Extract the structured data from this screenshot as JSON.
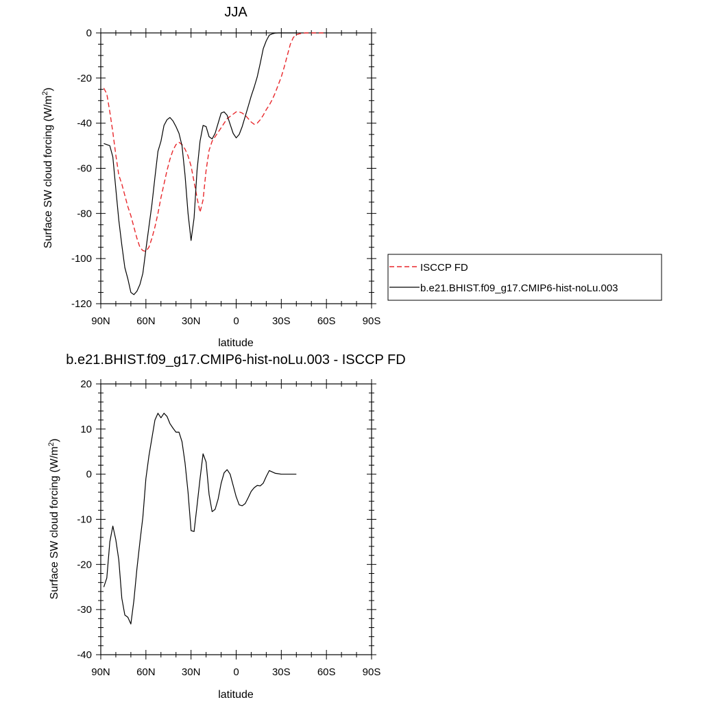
{
  "chart_data": [
    {
      "type": "line",
      "title": "JJA",
      "xlabel": "latitude",
      "ylabel_main": "Surface SW cloud forcing (W/m",
      "ylabel_sup": "2",
      "ylabel_close": ")",
      "xlim": [
        -90,
        90
      ],
      "ylim": [
        -120,
        0
      ],
      "xticks": [
        {
          "v": -90,
          "label": "90N"
        },
        {
          "v": -60,
          "label": "60N"
        },
        {
          "v": -30,
          "label": "30N"
        },
        {
          "v": 0,
          "label": "0"
        },
        {
          "v": 30,
          "label": "30S"
        },
        {
          "v": 60,
          "label": "60S"
        },
        {
          "v": 90,
          "label": "90S"
        }
      ],
      "yticks": [
        {
          "v": 0,
          "label": "0"
        },
        {
          "v": -20,
          "label": "-20"
        },
        {
          "v": -40,
          "label": "-40"
        },
        {
          "v": -60,
          "label": "-60"
        },
        {
          "v": -80,
          "label": "-80"
        },
        {
          "v": -100,
          "label": "-100"
        },
        {
          "v": -120,
          "label": "-120"
        }
      ],
      "legend_position": "right",
      "series": [
        {
          "name": "ISCCP FD",
          "color": "#e8262a",
          "style": "dashed",
          "points": [
            [
              -88,
              -24.5
            ],
            [
              -86,
              -27
            ],
            [
              -84,
              -35
            ],
            [
              -82,
              -44
            ],
            [
              -80,
              -54
            ],
            [
              -78,
              -63
            ],
            [
              -76,
              -67
            ],
            [
              -74,
              -72
            ],
            [
              -72,
              -77
            ],
            [
              -70,
              -81
            ],
            [
              -68,
              -86
            ],
            [
              -66,
              -91
            ],
            [
              -64,
              -95
            ],
            [
              -62,
              -96.5
            ],
            [
              -60,
              -96.8
            ],
            [
              -58,
              -95
            ],
            [
              -56,
              -91
            ],
            [
              -54,
              -86
            ],
            [
              -52,
              -80
            ],
            [
              -50,
              -73
            ],
            [
              -48,
              -67
            ],
            [
              -46,
              -61
            ],
            [
              -44,
              -56
            ],
            [
              -42,
              -52
            ],
            [
              -40,
              -49.5
            ],
            [
              -38,
              -48.5
            ],
            [
              -36,
              -49.5
            ],
            [
              -34,
              -51.5
            ],
            [
              -32,
              -54.5
            ],
            [
              -30,
              -59
            ],
            [
              -28,
              -66
            ],
            [
              -26,
              -73
            ],
            [
              -24,
              -79.5
            ],
            [
              -22,
              -74
            ],
            [
              -20,
              -61
            ],
            [
              -18,
              -52
            ],
            [
              -16,
              -48
            ],
            [
              -14,
              -46
            ],
            [
              -12,
              -44
            ],
            [
              -10,
              -42
            ],
            [
              -8,
              -40
            ],
            [
              -6,
              -38
            ],
            [
              -4,
              -37
            ],
            [
              -2,
              -36
            ],
            [
              0,
              -35
            ],
            [
              2,
              -35
            ],
            [
              4,
              -35.5
            ],
            [
              6,
              -36.5
            ],
            [
              8,
              -38
            ],
            [
              10,
              -39.5
            ],
            [
              12,
              -40.5
            ],
            [
              14,
              -40
            ],
            [
              16,
              -38.5
            ],
            [
              18,
              -36.5
            ],
            [
              20,
              -34
            ],
            [
              22,
              -32
            ],
            [
              24,
              -29.5
            ],
            [
              26,
              -26.5
            ],
            [
              28,
              -23
            ],
            [
              30,
              -19.5
            ],
            [
              32,
              -15
            ],
            [
              34,
              -10
            ],
            [
              36,
              -5
            ],
            [
              38,
              -2
            ],
            [
              40,
              -0.8
            ],
            [
              42,
              -0.4
            ],
            [
              44,
              -0.2
            ],
            [
              46,
              0
            ],
            [
              48,
              0
            ],
            [
              50,
              0
            ],
            [
              52,
              0
            ],
            [
              54,
              0
            ],
            [
              56,
              0
            ],
            [
              58,
              0
            ]
          ]
        },
        {
          "name": "b.e21.BHIST.f09_g17.CMIP6-hist-noLu.003",
          "color": "#000000",
          "style": "solid",
          "points": [
            [
              -88,
              -49
            ],
            [
              -86,
              -49.5
            ],
            [
              -84,
              -50
            ],
            [
              -82,
              -55
            ],
            [
              -80,
              -69
            ],
            [
              -78,
              -83
            ],
            [
              -76,
              -94
            ],
            [
              -74,
              -104
            ],
            [
              -72,
              -109
            ],
            [
              -70,
              -115
            ],
            [
              -68,
              -116
            ],
            [
              -66,
              -114.5
            ],
            [
              -64,
              -111.5
            ],
            [
              -62,
              -106.5
            ],
            [
              -60,
              -96
            ],
            [
              -58,
              -86
            ],
            [
              -56,
              -76
            ],
            [
              -54,
              -64
            ],
            [
              -52,
              -52.5
            ],
            [
              -50,
              -48
            ],
            [
              -48,
              -41
            ],
            [
              -46,
              -38.5
            ],
            [
              -44,
              -37.5
            ],
            [
              -42,
              -39
            ],
            [
              -40,
              -41.5
            ],
            [
              -38,
              -44.5
            ],
            [
              -36,
              -50
            ],
            [
              -34,
              -63
            ],
            [
              -32,
              -80
            ],
            [
              -30,
              -92
            ],
            [
              -28,
              -82
            ],
            [
              -26,
              -61
            ],
            [
              -24,
              -48
            ],
            [
              -22,
              -41
            ],
            [
              -20,
              -41.5
            ],
            [
              -18,
              -46
            ],
            [
              -16,
              -47
            ],
            [
              -14,
              -44.5
            ],
            [
              -12,
              -40
            ],
            [
              -10,
              -35.5
            ],
            [
              -8,
              -35
            ],
            [
              -6,
              -36.5
            ],
            [
              -4,
              -40.5
            ],
            [
              -2,
              -44.5
            ],
            [
              0,
              -46.5
            ],
            [
              2,
              -45
            ],
            [
              4,
              -41.5
            ],
            [
              6,
              -37
            ],
            [
              8,
              -32.5
            ],
            [
              10,
              -28
            ],
            [
              12,
              -24
            ],
            [
              14,
              -19.5
            ],
            [
              16,
              -13.5
            ],
            [
              18,
              -7
            ],
            [
              20,
              -3.5
            ],
            [
              22,
              -1
            ],
            [
              24,
              -0.4
            ],
            [
              26,
              -0.1
            ],
            [
              28,
              0
            ],
            [
              30,
              0
            ],
            [
              32,
              0
            ],
            [
              34,
              0
            ],
            [
              36,
              0
            ],
            [
              38,
              0
            ],
            [
              40,
              0
            ]
          ]
        }
      ]
    },
    {
      "type": "line",
      "title": "b.e21.BHIST.f09_g17.CMIP6-hist-noLu.003 - ISCCP FD",
      "xlabel": "latitude",
      "ylabel_main": "Surface SW cloud forcing (W/m",
      "ylabel_sup": "2",
      "ylabel_close": ")",
      "xlim": [
        -90,
        90
      ],
      "ylim": [
        -40,
        20
      ],
      "xticks": [
        {
          "v": -90,
          "label": "90N"
        },
        {
          "v": -60,
          "label": "60N"
        },
        {
          "v": -30,
          "label": "30N"
        },
        {
          "v": 0,
          "label": "0"
        },
        {
          "v": 30,
          "label": "30S"
        },
        {
          "v": 60,
          "label": "60S"
        },
        {
          "v": 90,
          "label": "90S"
        }
      ],
      "yticks": [
        {
          "v": 20,
          "label": "20"
        },
        {
          "v": 10,
          "label": "10"
        },
        {
          "v": 0,
          "label": "0"
        },
        {
          "v": -10,
          "label": "-10"
        },
        {
          "v": -20,
          "label": "-20"
        },
        {
          "v": -30,
          "label": "-30"
        },
        {
          "v": -40,
          "label": "-40"
        }
      ],
      "series": [
        {
          "color": "#000000",
          "style": "solid",
          "points": [
            [
              -88,
              -25
            ],
            [
              -86,
              -23
            ],
            [
              -84,
              -15
            ],
            [
              -82,
              -11.5
            ],
            [
              -80,
              -14.5
            ],
            [
              -78,
              -19
            ],
            [
              -76,
              -27.5
            ],
            [
              -74,
              -31.2
            ],
            [
              -72,
              -31.7
            ],
            [
              -70,
              -33.2
            ],
            [
              -68,
              -28
            ],
            [
              -66,
              -21
            ],
            [
              -64,
              -15
            ],
            [
              -62,
              -9.5
            ],
            [
              -60,
              -1
            ],
            [
              -58,
              4
            ],
            [
              -56,
              8
            ],
            [
              -54,
              12
            ],
            [
              -52,
              13.5
            ],
            [
              -50,
              12.5
            ],
            [
              -48,
              13.5
            ],
            [
              -46,
              12.8
            ],
            [
              -44,
              11.2
            ],
            [
              -42,
              10.2
            ],
            [
              -40,
              9.3
            ],
            [
              -38,
              9.3
            ],
            [
              -36,
              7.2
            ],
            [
              -34,
              2.5
            ],
            [
              -32,
              -4
            ],
            [
              -30,
              -12.5
            ],
            [
              -28,
              -12.7
            ],
            [
              -26,
              -7
            ],
            [
              -24,
              -1
            ],
            [
              -22,
              4.5
            ],
            [
              -20,
              2.7
            ],
            [
              -18,
              -4.5
            ],
            [
              -16,
              -8.3
            ],
            [
              -14,
              -7.8
            ],
            [
              -12,
              -5.5
            ],
            [
              -10,
              -2
            ],
            [
              -8,
              0.3
            ],
            [
              -6,
              1
            ],
            [
              -4,
              0
            ],
            [
              -2,
              -2.5
            ],
            [
              0,
              -5
            ],
            [
              2,
              -6.8
            ],
            [
              4,
              -7
            ],
            [
              6,
              -6.5
            ],
            [
              8,
              -5.2
            ],
            [
              10,
              -3.8
            ],
            [
              12,
              -3
            ],
            [
              14,
              -2.5
            ],
            [
              16,
              -2.6
            ],
            [
              18,
              -2
            ],
            [
              20,
              -0.5
            ],
            [
              22,
              0.8
            ],
            [
              24,
              0.5
            ],
            [
              26,
              0.2
            ],
            [
              28,
              0.1
            ],
            [
              30,
              0
            ],
            [
              32,
              0
            ],
            [
              34,
              0
            ],
            [
              36,
              0
            ],
            [
              38,
              0
            ],
            [
              40,
              0
            ]
          ]
        }
      ]
    }
  ]
}
